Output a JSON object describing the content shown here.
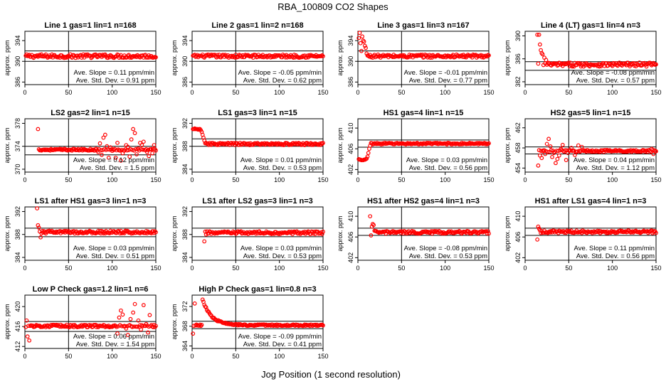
{
  "figure": {
    "title": "RBA_100809  CO2 Shapes",
    "xlabel": "Jog Position (1 second resolution)"
  },
  "chart_data": [
    {
      "type": "scatter",
      "title": "Line 1 gas=1 lin=1 n=168",
      "ylabel": "approx. ppm",
      "xlim": [
        0,
        150
      ],
      "xticks": [
        0,
        50,
        100,
        150
      ],
      "ylim": [
        385.5,
        395.8
      ],
      "yticks": [
        386,
        390,
        394
      ],
      "vline": 50,
      "hlines": [
        390,
        392
      ],
      "stats": [
        "Ave. Slope =  0.11  ppm/min",
        "Ave. Std. Dev. =  0.91  ppm"
      ],
      "base": 391,
      "noise": 0.35,
      "features": [],
      "color": "#ff0000"
    },
    {
      "type": "scatter",
      "title": "Line 2 gas=1 lin=2 n=168",
      "ylabel": "approx. ppm",
      "xlim": [
        0,
        150
      ],
      "xticks": [
        0,
        50,
        100,
        150
      ],
      "ylim": [
        385.5,
        395.8
      ],
      "yticks": [
        386,
        390,
        394
      ],
      "vline": 50,
      "hlines": [
        390,
        392
      ],
      "stats": [
        "Ave. Slope = -0.05  ppm/min",
        "Ave. Std. Dev. =  0.62  ppm"
      ],
      "base": 391,
      "noise": 0.3,
      "features": [],
      "color": "#ff0000"
    },
    {
      "type": "scatter",
      "title": "Line 3 gas=1 lin=3 n=167",
      "ylabel": "approx. ppm",
      "xlim": [
        0,
        150
      ],
      "xticks": [
        0,
        50,
        100,
        150
      ],
      "ylim": [
        385.5,
        395.8
      ],
      "yticks": [
        386,
        390,
        394
      ],
      "vline": 50,
      "hlines": [
        390,
        392
      ],
      "stats": [
        "Ave. Slope = -0.01  ppm/min",
        "Ave. Std. Dev. =  0.77  ppm"
      ],
      "base": 391,
      "noise": 0.3,
      "features": [
        {
          "x": 1,
          "y": 394.5
        },
        {
          "x": 2,
          "y": 395.5
        },
        {
          "x": 3,
          "y": 393.5
        },
        {
          "x": 4,
          "y": 392
        },
        {
          "x": 5,
          "y": 394.8
        },
        {
          "x": 6,
          "y": 394
        },
        {
          "x": 7,
          "y": 393.8
        },
        {
          "x": 8,
          "y": 393
        },
        {
          "x": 9,
          "y": 392.6
        },
        {
          "x": 10,
          "y": 391.5
        }
      ],
      "color": "#ff0000"
    },
    {
      "type": "scatter",
      "title": "Line 4 (LT) gas=1 lin=4 n=3",
      "ylabel": "approx. ppm",
      "xlim": [
        0,
        150
      ],
      "xticks": [
        0,
        50,
        100,
        150
      ],
      "ylim": [
        381.5,
        390.8
      ],
      "yticks": [
        382,
        386,
        390
      ],
      "vline": 50,
      "hlines": [
        384,
        385.5
      ],
      "stats": [
        "Ave. Slope = -0.08  ppm/min",
        "Ave. Std. Dev. =  0.57  ppm"
      ],
      "base": 385,
      "noise": 0.35,
      "start": 14,
      "features": [
        {
          "x": 14,
          "y": 390.2
        },
        {
          "x": 16,
          "y": 390.2
        },
        {
          "x": 17,
          "y": 388.5
        },
        {
          "x": 18,
          "y": 387.5
        },
        {
          "x": 19,
          "y": 387
        },
        {
          "x": 20,
          "y": 386.8
        },
        {
          "x": 22,
          "y": 386.2
        },
        {
          "x": 24,
          "y": 385.8
        }
      ],
      "color": "#ff0000"
    },
    {
      "type": "scatter",
      "title": "LS2 gas=2 lin=1 n=15",
      "ylabel": "approx. ppm",
      "xlim": [
        0,
        150
      ],
      "xticks": [
        0,
        50,
        100,
        150
      ],
      "ylim": [
        369.5,
        378.8
      ],
      "yticks": [
        370,
        374,
        378
      ],
      "vline": 50,
      "hlines": [
        372.5,
        374
      ],
      "stats": [
        "Ave. Slope =  0.12  ppm/min",
        "Ave. Std. Dev. =  1.5  ppm"
      ],
      "base": 373.4,
      "noise": 0.15,
      "start": 15,
      "features": [
        {
          "x": 15,
          "y": 377
        },
        {
          "x": 84,
          "y": 373
        },
        {
          "x": 86,
          "y": 374.5
        },
        {
          "x": 88,
          "y": 372.5
        },
        {
          "x": 90,
          "y": 375.5
        },
        {
          "x": 92,
          "y": 376
        },
        {
          "x": 94,
          "y": 374
        },
        {
          "x": 96,
          "y": 372
        },
        {
          "x": 98,
          "y": 373.8
        },
        {
          "x": 100,
          "y": 373.2
        },
        {
          "x": 104,
          "y": 372
        },
        {
          "x": 106,
          "y": 374.6
        },
        {
          "x": 110,
          "y": 371.5
        },
        {
          "x": 112,
          "y": 372.8
        },
        {
          "x": 116,
          "y": 374.2
        },
        {
          "x": 118,
          "y": 373.9
        },
        {
          "x": 120,
          "y": 372.2
        },
        {
          "x": 122,
          "y": 375.2
        },
        {
          "x": 124,
          "y": 377
        },
        {
          "x": 126,
          "y": 376.3
        },
        {
          "x": 128,
          "y": 372.6
        },
        {
          "x": 130,
          "y": 373.6
        },
        {
          "x": 132,
          "y": 374.6
        },
        {
          "x": 134,
          "y": 374.2
        },
        {
          "x": 136,
          "y": 374.8
        },
        {
          "x": 140,
          "y": 373
        },
        {
          "x": 142,
          "y": 372.3
        },
        {
          "x": 146,
          "y": 372.8
        },
        {
          "x": 148,
          "y": 374.2
        }
      ],
      "color": "#ff0000"
    },
    {
      "type": "scatter",
      "title": "LS1 gas=3 lin=1 n=15",
      "ylabel": "approx. ppm",
      "xlim": [
        0,
        150
      ],
      "xticks": [
        0,
        50,
        100,
        150
      ],
      "ylim": [
        383.5,
        392.8
      ],
      "yticks": [
        384,
        388,
        392
      ],
      "vline": 50,
      "hlines": [
        388,
        389.3
      ],
      "stats": [
        "Ave. Slope =  0.01  ppm/min",
        "Ave. Std. Dev. =  0.53  ppm"
      ],
      "base": 388.4,
      "noise": 0.2,
      "start": 15,
      "features": [
        {
          "x": 1,
          "y": 391
        },
        {
          "x": 2,
          "y": 391
        },
        {
          "x": 3,
          "y": 391.1
        },
        {
          "x": 4,
          "y": 391
        },
        {
          "x": 5,
          "y": 391
        },
        {
          "x": 6,
          "y": 391
        },
        {
          "x": 7,
          "y": 390.9
        },
        {
          "x": 8,
          "y": 391
        },
        {
          "x": 9,
          "y": 391
        },
        {
          "x": 10,
          "y": 390.8
        },
        {
          "x": 11,
          "y": 390.5
        },
        {
          "x": 12,
          "y": 390
        },
        {
          "x": 13,
          "y": 389.5
        },
        {
          "x": 14,
          "y": 389
        }
      ],
      "color": "#ff0000"
    },
    {
      "type": "scatter",
      "title": "HS1 gas=4 lin=1 n=15",
      "ylabel": "approx. ppm",
      "xlim": [
        0,
        150
      ],
      "xticks": [
        0,
        50,
        100,
        150
      ],
      "ylim": [
        401.5,
        411.8
      ],
      "yticks": [
        402,
        406,
        410
      ],
      "vline": 50,
      "hlines": [
        406.3,
        407.7
      ],
      "stats": [
        "Ave. Slope =  0.03  ppm/min",
        "Ave. Std. Dev. =  0.56  ppm"
      ],
      "base": 407,
      "noise": 0.15,
      "start": 15,
      "features": [
        {
          "x": 1,
          "y": 404
        },
        {
          "x": 2,
          "y": 403.9
        },
        {
          "x": 3,
          "y": 403.9
        },
        {
          "x": 4,
          "y": 403.8
        },
        {
          "x": 5,
          "y": 403.8
        },
        {
          "x": 6,
          "y": 403.8
        },
        {
          "x": 7,
          "y": 403.9
        },
        {
          "x": 8,
          "y": 403.9
        },
        {
          "x": 9,
          "y": 404
        },
        {
          "x": 10,
          "y": 404.1
        },
        {
          "x": 11,
          "y": 404.5
        },
        {
          "x": 12,
          "y": 405.2
        },
        {
          "x": 13,
          "y": 406
        },
        {
          "x": 14,
          "y": 406.6
        }
      ],
      "color": "#ff0000"
    },
    {
      "type": "scatter",
      "title": "HS2 gas=5 lin=1 n=15",
      "ylabel": "approx. ppm",
      "xlim": [
        0,
        150
      ],
      "xticks": [
        0,
        50,
        100,
        150
      ],
      "ylim": [
        453.2,
        463.8
      ],
      "yticks": [
        454,
        458,
        462
      ],
      "vline": 50,
      "hlines": [
        456.8,
        458.2
      ],
      "stats": [
        "Ave. Slope =  0.04  ppm/min",
        "Ave. Std. Dev. =  1.12  ppm"
      ],
      "base": 457.4,
      "noise": 0.2,
      "start": 15,
      "features": [
        {
          "x": 15,
          "y": 454.5
        },
        {
          "x": 17,
          "y": 456.5
        },
        {
          "x": 19,
          "y": 456
        },
        {
          "x": 21,
          "y": 457.5
        },
        {
          "x": 23,
          "y": 456.8
        },
        {
          "x": 25,
          "y": 458.8
        },
        {
          "x": 27,
          "y": 459.8
        },
        {
          "x": 29,
          "y": 458.3
        },
        {
          "x": 31,
          "y": 456.2
        },
        {
          "x": 33,
          "y": 457
        },
        {
          "x": 35,
          "y": 455
        },
        {
          "x": 37,
          "y": 455.8
        },
        {
          "x": 39,
          "y": 456.5
        },
        {
          "x": 41,
          "y": 457.8
        },
        {
          "x": 43,
          "y": 458.6
        },
        {
          "x": 47,
          "y": 455.6
        },
        {
          "x": 49,
          "y": 457
        },
        {
          "x": 53,
          "y": 458
        },
        {
          "x": 57,
          "y": 456.6
        },
        {
          "x": 61,
          "y": 458.5
        },
        {
          "x": 65,
          "y": 458.2
        },
        {
          "x": 145,
          "y": 457.8
        },
        {
          "x": 147,
          "y": 456.8
        }
      ],
      "color": "#ff0000"
    },
    {
      "type": "scatter",
      "title": "LS1 after HS1 gas=3 lin=1 n=3",
      "ylabel": "approx. ppm",
      "xlim": [
        0,
        150
      ],
      "xticks": [
        0,
        50,
        100,
        150
      ],
      "ylim": [
        383.5,
        392.8
      ],
      "yticks": [
        384,
        388,
        392
      ],
      "vline": 50,
      "hlines": [
        387.6,
        389.1
      ],
      "stats": [
        "Ave. Slope =  0.03  ppm/min",
        "Ave. Std. Dev. =  0.51  ppm"
      ],
      "base": 388.4,
      "noise": 0.25,
      "start": 14,
      "features": [
        {
          "x": 14,
          "y": 392.7
        },
        {
          "x": 15,
          "y": 389.6
        },
        {
          "x": 16,
          "y": 389.2
        },
        {
          "x": 17,
          "y": 388.5
        },
        {
          "x": 18,
          "y": 387.5
        },
        {
          "x": 19,
          "y": 388.2
        }
      ],
      "color": "#ff0000"
    },
    {
      "type": "scatter",
      "title": "LS1 after LS2 gas=3 lin=1 n=3",
      "ylabel": "approx. ppm",
      "xlim": [
        0,
        150
      ],
      "xticks": [
        0,
        50,
        100,
        150
      ],
      "ylim": [
        383.5,
        392.8
      ],
      "yticks": [
        384,
        388,
        392
      ],
      "vline": 50,
      "hlines": [
        387.6,
        389.1
      ],
      "stats": [
        "Ave. Slope =  0.03  ppm/min",
        "Ave. Std. Dev. =  0.53  ppm"
      ],
      "base": 388.3,
      "noise": 0.25,
      "start": 14,
      "features": [
        {
          "x": 14,
          "y": 386.8
        },
        {
          "x": 15,
          "y": 388.5
        },
        {
          "x": 16,
          "y": 388
        }
      ],
      "color": "#ff0000"
    },
    {
      "type": "scatter",
      "title": "HS1 after HS2 gas=4 lin=1 n=3",
      "ylabel": "approx. ppm",
      "xlim": [
        0,
        150
      ],
      "xticks": [
        0,
        50,
        100,
        150
      ],
      "ylim": [
        401.5,
        411.8
      ],
      "yticks": [
        402,
        406,
        410
      ],
      "vline": 50,
      "hlines": [
        406.3,
        407.7
      ],
      "stats": [
        "Ave. Slope = -0.08  ppm/min",
        "Ave. Std. Dev. =  0.53  ppm"
      ],
      "base": 406.9,
      "noise": 0.25,
      "start": 14,
      "features": [
        {
          "x": 14,
          "y": 410
        },
        {
          "x": 15,
          "y": 406.3
        },
        {
          "x": 16,
          "y": 408
        },
        {
          "x": 17,
          "y": 408.5
        },
        {
          "x": 18,
          "y": 408.3
        },
        {
          "x": 19,
          "y": 407.2
        }
      ],
      "color": "#ff0000"
    },
    {
      "type": "scatter",
      "title": "HS1 after LS1 gas=4 lin=1 n=3",
      "ylabel": "approx. ppm",
      "xlim": [
        0,
        150
      ],
      "xticks": [
        0,
        50,
        100,
        150
      ],
      "ylim": [
        401.5,
        411.8
      ],
      "yticks": [
        402,
        406,
        410
      ],
      "vline": 50,
      "hlines": [
        406.3,
        407.7
      ],
      "stats": [
        "Ave. Slope =  0.11  ppm/min",
        "Ave. Std. Dev. =  0.56  ppm"
      ],
      "base": 407,
      "noise": 0.25,
      "start": 15,
      "features": [
        {
          "x": 14,
          "y": 405.5
        },
        {
          "x": 15,
          "y": 408
        },
        {
          "x": 16,
          "y": 407.6
        },
        {
          "x": 17,
          "y": 407.3
        }
      ],
      "color": "#ff0000"
    },
    {
      "type": "scatter",
      "title": "Low P Check gas=1.2 lin=1 n=6",
      "ylabel": "approx. ppm",
      "xlim": [
        0,
        150
      ],
      "xticks": [
        0,
        50,
        100,
        150
      ],
      "ylim": [
        411.6,
        422.3
      ],
      "yticks": [
        412,
        416,
        420
      ],
      "vline": 50,
      "hlines": [
        415,
        417
      ],
      "stats": [
        "Ave. Slope =  0.06  ppm/min",
        "Ave. Std. Dev. =  1.54  ppm"
      ],
      "base": 416.1,
      "noise": 0.25,
      "features": [
        {
          "x": 2,
          "y": 417.2
        },
        {
          "x": 3,
          "y": 414
        },
        {
          "x": 5,
          "y": 413.2
        },
        {
          "x": 106,
          "y": 414.6
        },
        {
          "x": 108,
          "y": 417.8
        },
        {
          "x": 110,
          "y": 419.2
        },
        {
          "x": 112,
          "y": 418.4
        },
        {
          "x": 116,
          "y": 415.6
        },
        {
          "x": 118,
          "y": 414.3
        },
        {
          "x": 121,
          "y": 417.5
        },
        {
          "x": 124,
          "y": 418.8
        },
        {
          "x": 126,
          "y": 420.5
        },
        {
          "x": 130,
          "y": 417.2
        },
        {
          "x": 133,
          "y": 415.4
        },
        {
          "x": 136,
          "y": 420.3
        },
        {
          "x": 139,
          "y": 416.5
        },
        {
          "x": 141,
          "y": 414.8
        },
        {
          "x": 143,
          "y": 418.3
        },
        {
          "x": 146,
          "y": 416
        }
      ],
      "color": "#ff0000"
    },
    {
      "type": "scatter",
      "title": "High P Check gas=1 lin=0.8 n=3",
      "ylabel": "approx. ppm",
      "xlim": [
        0,
        150
      ],
      "xticks": [
        0,
        50,
        100,
        150
      ],
      "ylim": [
        363.5,
        374.3
      ],
      "yticks": [
        364,
        368,
        372
      ],
      "vline": 50,
      "hlines": [
        367.5,
        369
      ],
      "stats": [
        "Ave. Slope = -0.09  ppm/min",
        "Ave. Std. Dev. =  0.41  ppm"
      ],
      "base": 368.2,
      "noise": 0.15,
      "decay": {
        "amplitude": 5.2,
        "tau": 10,
        "from": 12
      },
      "features": [
        {
          "x": 1,
          "y": 366.5
        },
        {
          "x": 3,
          "y": 372.6
        }
      ],
      "color": "#ff0000"
    }
  ]
}
